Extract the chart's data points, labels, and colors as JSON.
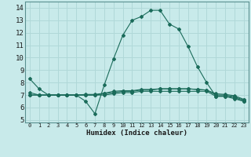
{
  "title": "",
  "xlabel": "Humidex (Indice chaleur)",
  "bg_color": "#c8eaea",
  "grid_color": "#b0d8d8",
  "line_color": "#1a6b5a",
  "xlim": [
    -0.5,
    23.5
  ],
  "ylim": [
    4.8,
    14.5
  ],
  "xticks": [
    0,
    1,
    2,
    3,
    4,
    5,
    6,
    7,
    8,
    9,
    10,
    11,
    12,
    13,
    14,
    15,
    16,
    17,
    18,
    19,
    20,
    21,
    22,
    23
  ],
  "yticks": [
    5,
    6,
    7,
    8,
    9,
    10,
    11,
    12,
    13,
    14
  ],
  "series": [
    {
      "x": [
        0,
        1,
        2,
        3,
        4,
        5,
        6,
        7,
        8,
        9,
        10,
        11,
        12,
        13,
        14,
        15,
        16,
        17,
        18,
        19,
        20,
        21,
        22,
        23
      ],
      "y": [
        8.3,
        7.5,
        7.0,
        7.0,
        7.0,
        7.0,
        6.5,
        5.5,
        7.8,
        9.9,
        11.8,
        13.0,
        13.3,
        13.8,
        13.8,
        12.7,
        12.3,
        10.9,
        9.3,
        8.0,
        6.9,
        6.9,
        6.7,
        6.5
      ]
    },
    {
      "x": [
        0,
        1,
        2,
        3,
        4,
        5,
        6,
        7,
        8,
        9,
        10,
        11,
        12,
        13,
        14,
        15,
        16,
        17,
        18,
        19,
        20,
        21,
        22,
        23
      ],
      "y": [
        7.0,
        7.0,
        7.0,
        7.0,
        7.0,
        7.0,
        7.05,
        7.05,
        7.15,
        7.3,
        7.35,
        7.35,
        7.45,
        7.45,
        7.5,
        7.5,
        7.5,
        7.5,
        7.45,
        7.4,
        7.0,
        7.0,
        6.85,
        6.6
      ]
    },
    {
      "x": [
        0,
        1,
        2,
        3,
        4,
        5,
        6,
        7,
        8,
        9,
        10,
        11,
        12,
        13,
        14,
        15,
        16,
        17,
        18,
        19,
        20,
        21,
        22,
        23
      ],
      "y": [
        7.2,
        7.0,
        7.0,
        7.0,
        7.0,
        7.0,
        7.0,
        7.0,
        7.1,
        7.2,
        7.3,
        7.3,
        7.4,
        7.4,
        7.5,
        7.5,
        7.5,
        7.5,
        7.45,
        7.4,
        7.1,
        7.05,
        6.95,
        6.65
      ]
    },
    {
      "x": [
        0,
        1,
        2,
        3,
        4,
        5,
        6,
        7,
        8,
        9,
        10,
        11,
        12,
        13,
        14,
        15,
        16,
        17,
        18,
        19,
        20,
        21,
        22,
        23
      ],
      "y": [
        7.0,
        7.0,
        7.0,
        7.0,
        7.0,
        7.0,
        7.0,
        7.0,
        7.0,
        7.1,
        7.2,
        7.2,
        7.3,
        7.3,
        7.3,
        7.3,
        7.3,
        7.3,
        7.3,
        7.3,
        6.9,
        6.9,
        6.8,
        6.5
      ]
    }
  ]
}
